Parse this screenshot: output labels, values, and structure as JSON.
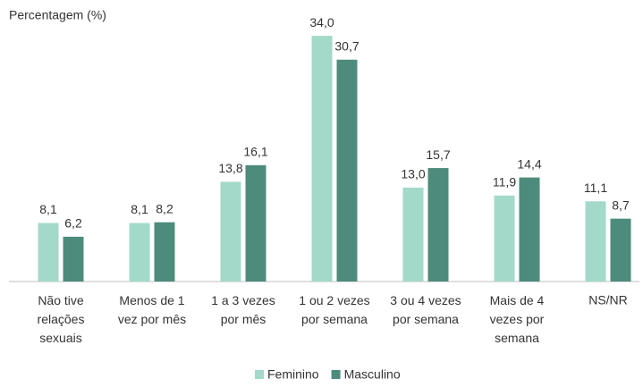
{
  "chart_data": {
    "type": "bar",
    "y_label": "Percentagem (%)",
    "categories": [
      "Não tive\nrelações\nsexuais",
      "Menos de 1\nvez por mês",
      "1 a 3 vezes\npor mês",
      "1 ou 2 vezes\npor semana",
      "3 ou 4 vezes\npor semana",
      "Mais de 4\nvezes por\nsemana",
      "NS/NR"
    ],
    "series": [
      {
        "name": "Feminino",
        "color": "#a3d9c9",
        "values": [
          8.1,
          8.1,
          13.8,
          34.0,
          13.0,
          11.9,
          11.1
        ],
        "value_labels": [
          "8,1",
          "8,1",
          "13,8",
          "34,0",
          "13,0",
          "11,9",
          "11,1"
        ]
      },
      {
        "name": "Masculino",
        "color": "#4d8b7c",
        "values": [
          6.2,
          8.2,
          16.1,
          30.7,
          15.7,
          14.4,
          8.7
        ],
        "value_labels": [
          "6,2",
          "8,2",
          "16,1",
          "30,7",
          "15,7",
          "14,4",
          "8,7"
        ]
      }
    ],
    "ylim": [
      0,
      35
    ],
    "legend": "bottom"
  }
}
